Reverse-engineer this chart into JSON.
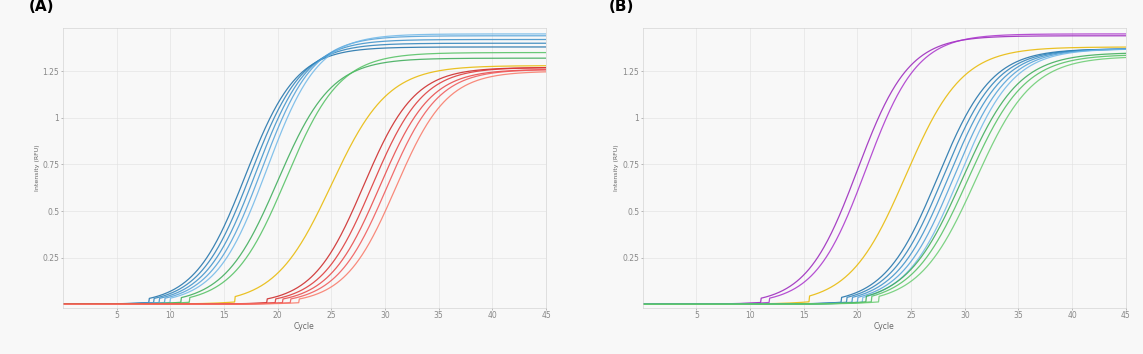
{
  "panel_A_label": "(A)",
  "panel_B_label": "(B)",
  "xlabel": "Cycle",
  "ylabel": "Intensity (RFU)",
  "x_min": 0,
  "x_max": 45,
  "x_ticks": [
    5,
    10,
    15,
    20,
    25,
    30,
    35,
    40,
    45
  ],
  "y_min": -0.02,
  "y_max": 1.48,
  "y_ticks": [
    0.25,
    0.5,
    0.75,
    1.0,
    1.25
  ],
  "y_tick_labels": [
    "0.25",
    "0.5",
    "0.75",
    "1",
    "1.25"
  ],
  "background_color": "#f8f8f8",
  "grid_color": "#e0e0e0",
  "spine_color": "#cccccc",
  "tick_color": "#888888",
  "label_color": "#666666",
  "panel_A_curves": [
    {
      "color": "#1a6fa8",
      "mid": 17.0,
      "steepness": 0.42,
      "plateau": 1.38
    },
    {
      "color": "#2a80b9",
      "mid": 17.5,
      "steepness": 0.42,
      "plateau": 1.4
    },
    {
      "color": "#3a90c9",
      "mid": 18.0,
      "steepness": 0.42,
      "plateau": 1.42
    },
    {
      "color": "#50a0d8",
      "mid": 18.5,
      "steepness": 0.42,
      "plateau": 1.44
    },
    {
      "color": "#70b8e8",
      "mid": 19.0,
      "steepness": 0.42,
      "plateau": 1.45
    },
    {
      "color": "#38aa55",
      "mid": 20.0,
      "steepness": 0.4,
      "plateau": 1.32
    },
    {
      "color": "#50c060",
      "mid": 20.8,
      "steepness": 0.4,
      "plateau": 1.35
    },
    {
      "color": "#e8b800",
      "mid": 25.0,
      "steepness": 0.38,
      "plateau": 1.28
    },
    {
      "color": "#cc2222",
      "mid": 28.0,
      "steepness": 0.42,
      "plateau": 1.27
    },
    {
      "color": "#dd3333",
      "mid": 28.8,
      "steepness": 0.42,
      "plateau": 1.27
    },
    {
      "color": "#e84444",
      "mid": 29.5,
      "steepness": 0.42,
      "plateau": 1.26
    },
    {
      "color": "#f05555",
      "mid": 30.2,
      "steepness": 0.42,
      "plateau": 1.26
    },
    {
      "color": "#f87766",
      "mid": 31.0,
      "steepness": 0.42,
      "plateau": 1.25
    }
  ],
  "panel_B_curves": [
    {
      "color": "#9922bb",
      "mid": 20.0,
      "steepness": 0.42,
      "plateau": 1.44
    },
    {
      "color": "#aa33cc",
      "mid": 20.8,
      "steepness": 0.42,
      "plateau": 1.45
    },
    {
      "color": "#e8b800",
      "mid": 24.5,
      "steepness": 0.38,
      "plateau": 1.38
    },
    {
      "color": "#1a6fa8",
      "mid": 27.5,
      "steepness": 0.4,
      "plateau": 1.37
    },
    {
      "color": "#2a80b9",
      "mid": 28.0,
      "steepness": 0.4,
      "plateau": 1.37
    },
    {
      "color": "#3a90c9",
      "mid": 28.5,
      "steepness": 0.4,
      "plateau": 1.37
    },
    {
      "color": "#50a0d8",
      "mid": 29.0,
      "steepness": 0.4,
      "plateau": 1.37
    },
    {
      "color": "#70b8e8",
      "mid": 29.5,
      "steepness": 0.4,
      "plateau": 1.37
    },
    {
      "color": "#38aa55",
      "mid": 29.8,
      "steepness": 0.38,
      "plateau": 1.35
    },
    {
      "color": "#50c060",
      "mid": 30.3,
      "steepness": 0.38,
      "plateau": 1.34
    },
    {
      "color": "#68cc70",
      "mid": 31.0,
      "steepness": 0.38,
      "plateau": 1.33
    }
  ]
}
